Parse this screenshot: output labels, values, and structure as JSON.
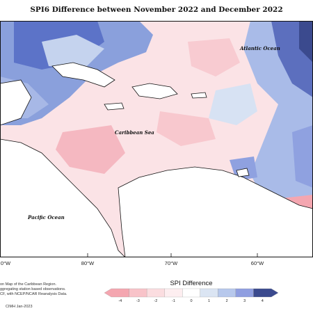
{
  "title": "SPI6 Difference between November 2022 and December 2022",
  "ocean_labels": {
    "atlantic": "Atlantic Ocean",
    "caribbean": "Caribbean Sea",
    "pacific": "Pacific Ocean"
  },
  "longitude_ticks": [
    "80°W",
    "70°W",
    "60°W"
  ],
  "longitude_tick_edge": "0°W",
  "footnote_lines": [
    "on Map of the Caribbean Region.",
    "ggregating station based observations.",
    "CF, with NCEP/NCAR Reanalysis Data."
  ],
  "legend": {
    "title": "SPI Difference",
    "ticks": [
      "-4",
      "-3",
      "-2",
      "-1",
      "0",
      "1",
      "2",
      "3",
      "4"
    ],
    "colors": [
      "#f4a6b0",
      "#f8c3c9",
      "#fbdde0",
      "#fdeef0",
      "#ffffff",
      "#dbe5f3",
      "#b7c8ec",
      "#8f9ee0",
      "#3b4a8e"
    ]
  },
  "credit": "CIMH Jan-2023"
}
